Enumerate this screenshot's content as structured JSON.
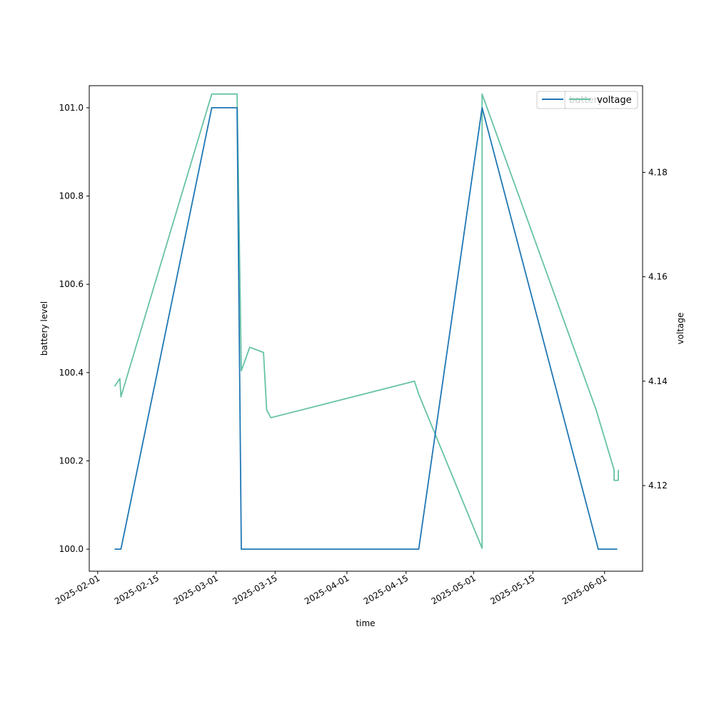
{
  "chart_data": {
    "type": "line",
    "xlabel": "time",
    "ylabel_left": "battery level",
    "ylabel_right": "voltage",
    "x_ticks": [
      "2025-02-01",
      "2025-02-15",
      "2025-03-01",
      "2025-03-15",
      "2025-04-01",
      "2025-04-15",
      "2025-05-01",
      "2025-05-15",
      "2025-06-01"
    ],
    "x_range": [
      "2025-01-30",
      "2025-06-10"
    ],
    "y_left_range": [
      99.95,
      101.05
    ],
    "y_left_ticks": [
      "100.0",
      "100.2",
      "100.4",
      "100.6",
      "100.8",
      "101.0"
    ],
    "y_right_range": [
      4.1036,
      4.1966
    ],
    "y_right_ticks": [
      "4.12",
      "4.14",
      "4.16",
      "4.18"
    ],
    "legend_placement": "top-right",
    "series": [
      {
        "name": "battery",
        "axis": "left",
        "color": "#1f77b4",
        "points": [
          [
            "2025-02-05T00:00",
            100.0
          ],
          [
            "2025-02-06T12:00",
            100.0
          ],
          [
            "2025-02-28T00:00",
            101.0
          ],
          [
            "2025-03-06T00:00",
            101.0
          ],
          [
            "2025-03-07T00:00",
            100.0
          ],
          [
            "2025-04-18T00:00",
            100.0
          ],
          [
            "2025-05-03T00:00",
            101.0
          ],
          [
            "2025-05-30T12:00",
            100.0
          ],
          [
            "2025-06-04T00:00",
            100.0
          ]
        ]
      },
      {
        "name": "voltage",
        "axis": "right",
        "color": "#66c2a5",
        "points": [
          [
            "2025-02-05T00:00",
            4.139
          ],
          [
            "2025-02-06T06:00",
            4.1405
          ],
          [
            "2025-02-06T12:00",
            4.137
          ],
          [
            "2025-02-28T00:00",
            4.195
          ],
          [
            "2025-03-06T00:00",
            4.195
          ],
          [
            "2025-03-07T00:00",
            4.142
          ],
          [
            "2025-03-09T00:00",
            4.1465
          ],
          [
            "2025-03-12T06:00",
            4.1455
          ],
          [
            "2025-03-13T00:00",
            4.1345
          ],
          [
            "2025-03-14T00:00",
            4.133
          ],
          [
            "2025-04-17T00:00",
            4.14
          ],
          [
            "2025-04-18T00:00",
            4.1375
          ],
          [
            "2025-05-03T00:00",
            4.108
          ],
          [
            "2025-05-03T00:00",
            4.195
          ],
          [
            "2025-05-30T00:00",
            4.1345
          ],
          [
            "2025-06-03T06:00",
            4.123
          ],
          [
            "2025-06-03T06:00",
            4.121
          ],
          [
            "2025-06-04T06:00",
            4.121
          ],
          [
            "2025-06-04T06:00",
            4.123
          ]
        ]
      }
    ]
  }
}
